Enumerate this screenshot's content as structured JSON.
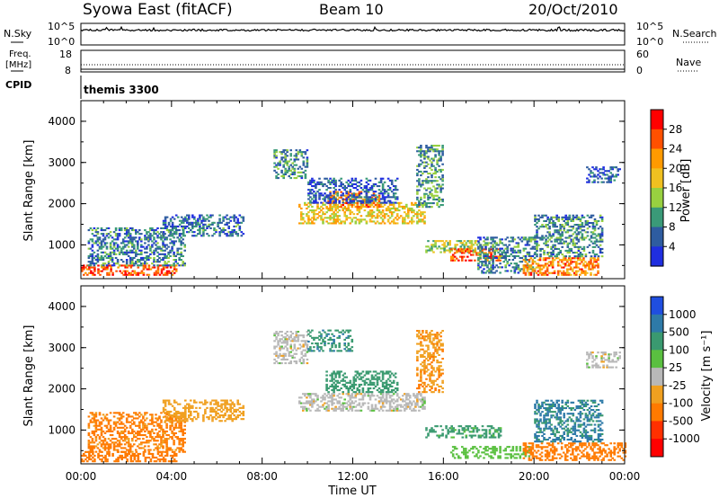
{
  "header": {
    "station": "Syowa East (fitACF)",
    "beam": "Beam 10",
    "date": "20/Oct/2010"
  },
  "panels": {
    "nsky_label": "N.Sky",
    "nsearch_label": "N.Search",
    "nsky_ticks": [
      "10^5",
      "10^0"
    ],
    "nsearch_ticks": [
      "10^5",
      "10^0"
    ],
    "freq_label_1": "Freq.",
    "freq_label_2": "[MHz]",
    "freq_ticks": [
      "18",
      "8"
    ],
    "nave_label": "Nave",
    "nave_ticks": [
      "60",
      "0"
    ],
    "cpid_label": "CPID",
    "cpid_value": "themis 3300"
  },
  "power_colorbar": {
    "label": "Power [dB]",
    "ticks": [
      "28",
      "24",
      "20",
      "16",
      "12",
      "8",
      "4"
    ],
    "colors": [
      "#ff0000",
      "#ff5000",
      "#ff9a00",
      "#f0c020",
      "#98d040",
      "#3a9a78",
      "#2e5ca0",
      "#1f2ee0"
    ]
  },
  "velocity_colorbar": {
    "label": "Velocity [m s⁻¹]",
    "ticks": [
      "1000",
      "500",
      "100",
      "25",
      "-25",
      "-100",
      "-500",
      "-1000"
    ],
    "colors": [
      "#1f4ee0",
      "#2e7aa8",
      "#3a9a70",
      "#5ac040",
      "#b8b8b8",
      "#f0a020",
      "#ff7a00",
      "#ff3000",
      "#ff0000"
    ]
  },
  "time_axis": {
    "label": "Time UT",
    "ticks": [
      "00:00",
      "04:00",
      "08:00",
      "12:00",
      "16:00",
      "20:00",
      "00:00"
    ]
  },
  "chart_data": [
    {
      "type": "heatmap",
      "title": "",
      "xlabel": "Time UT",
      "ylabel": "Slant Range [km]",
      "xlim": [
        0,
        24
      ],
      "ylim": [
        180,
        4500
      ],
      "yticks": [
        1000,
        2000,
        3000,
        4000
      ],
      "colorbar": {
        "label": "Power [dB]",
        "range": [
          2,
          30
        ]
      },
      "regions": [
        {
          "t": [
            0.0,
            4.2
          ],
          "r": [
            250,
            480
          ],
          "v": 26
        },
        {
          "t": [
            0.3,
            4.6
          ],
          "r": [
            480,
            1400
          ],
          "v": 9
        },
        {
          "t": [
            3.6,
            7.2
          ],
          "r": [
            1200,
            1700
          ],
          "v": 8
        },
        {
          "t": [
            8.5,
            10.0
          ],
          "r": [
            2600,
            3300
          ],
          "v": 10
        },
        {
          "t": [
            9.6,
            15.2
          ],
          "r": [
            1500,
            2000
          ],
          "v": 18
        },
        {
          "t": [
            10.8,
            13.2
          ],
          "r": [
            1900,
            2300
          ],
          "v": 22
        },
        {
          "t": [
            10.0,
            14.0
          ],
          "r": [
            2000,
            2600
          ],
          "v": 7
        },
        {
          "t": [
            14.8,
            16.0
          ],
          "r": [
            1900,
            3400
          ],
          "v": 11
        },
        {
          "t": [
            15.2,
            17.6
          ],
          "r": [
            800,
            1100
          ],
          "v": 14
        },
        {
          "t": [
            16.3,
            18.5
          ],
          "r": [
            600,
            900
          ],
          "v": 25
        },
        {
          "t": [
            17.5,
            20.0
          ],
          "r": [
            300,
            1200
          ],
          "v": 9
        },
        {
          "t": [
            19.5,
            22.8
          ],
          "r": [
            250,
            700
          ],
          "v": 22
        },
        {
          "t": [
            20.0,
            23.0
          ],
          "r": [
            700,
            1700
          ],
          "v": 10
        },
        {
          "t": [
            22.3,
            23.8
          ],
          "r": [
            2500,
            2900
          ],
          "v": 6
        }
      ]
    },
    {
      "type": "heatmap",
      "title": "",
      "xlabel": "Time UT",
      "ylabel": "Slant Range [km]",
      "xlim": [
        0,
        24
      ],
      "ylim": [
        180,
        4500
      ],
      "yticks": [
        1000,
        2000,
        3000,
        4000
      ],
      "colorbar": {
        "label": "Velocity [m s⁻¹]",
        "bounds": [
          -1000,
          -500,
          -100,
          -25,
          25,
          100,
          500,
          1000
        ]
      },
      "regions": [
        {
          "t": [
            0.0,
            4.2
          ],
          "r": [
            220,
            450
          ],
          "v": -200
        },
        {
          "t": [
            0.3,
            4.6
          ],
          "r": [
            450,
            1400
          ],
          "v": -150
        },
        {
          "t": [
            3.6,
            7.2
          ],
          "r": [
            1200,
            1700
          ],
          "v": -60
        },
        {
          "t": [
            8.5,
            10.0
          ],
          "r": [
            2600,
            3400
          ],
          "v": 0
        },
        {
          "t": [
            9.6,
            15.2
          ],
          "r": [
            1450,
            1900
          ],
          "v": 0
        },
        {
          "t": [
            10.8,
            14.0
          ],
          "r": [
            1900,
            2400
          ],
          "v": 300
        },
        {
          "t": [
            10.0,
            12.0
          ],
          "r": [
            2900,
            3400
          ],
          "v": 400
        },
        {
          "t": [
            14.8,
            16.0
          ],
          "r": [
            1900,
            3400
          ],
          "v": -80
        },
        {
          "t": [
            15.2,
            18.5
          ],
          "r": [
            800,
            1100
          ],
          "v": 150
        },
        {
          "t": [
            16.3,
            19.8
          ],
          "r": [
            300,
            600
          ],
          "v": 60
        },
        {
          "t": [
            19.5,
            24.0
          ],
          "r": [
            250,
            700
          ],
          "v": -300
        },
        {
          "t": [
            20.0,
            23.0
          ],
          "r": [
            700,
            1700
          ],
          "v": 600
        },
        {
          "t": [
            22.3,
            23.8
          ],
          "r": [
            2500,
            2900
          ],
          "v": 0
        }
      ]
    }
  ]
}
